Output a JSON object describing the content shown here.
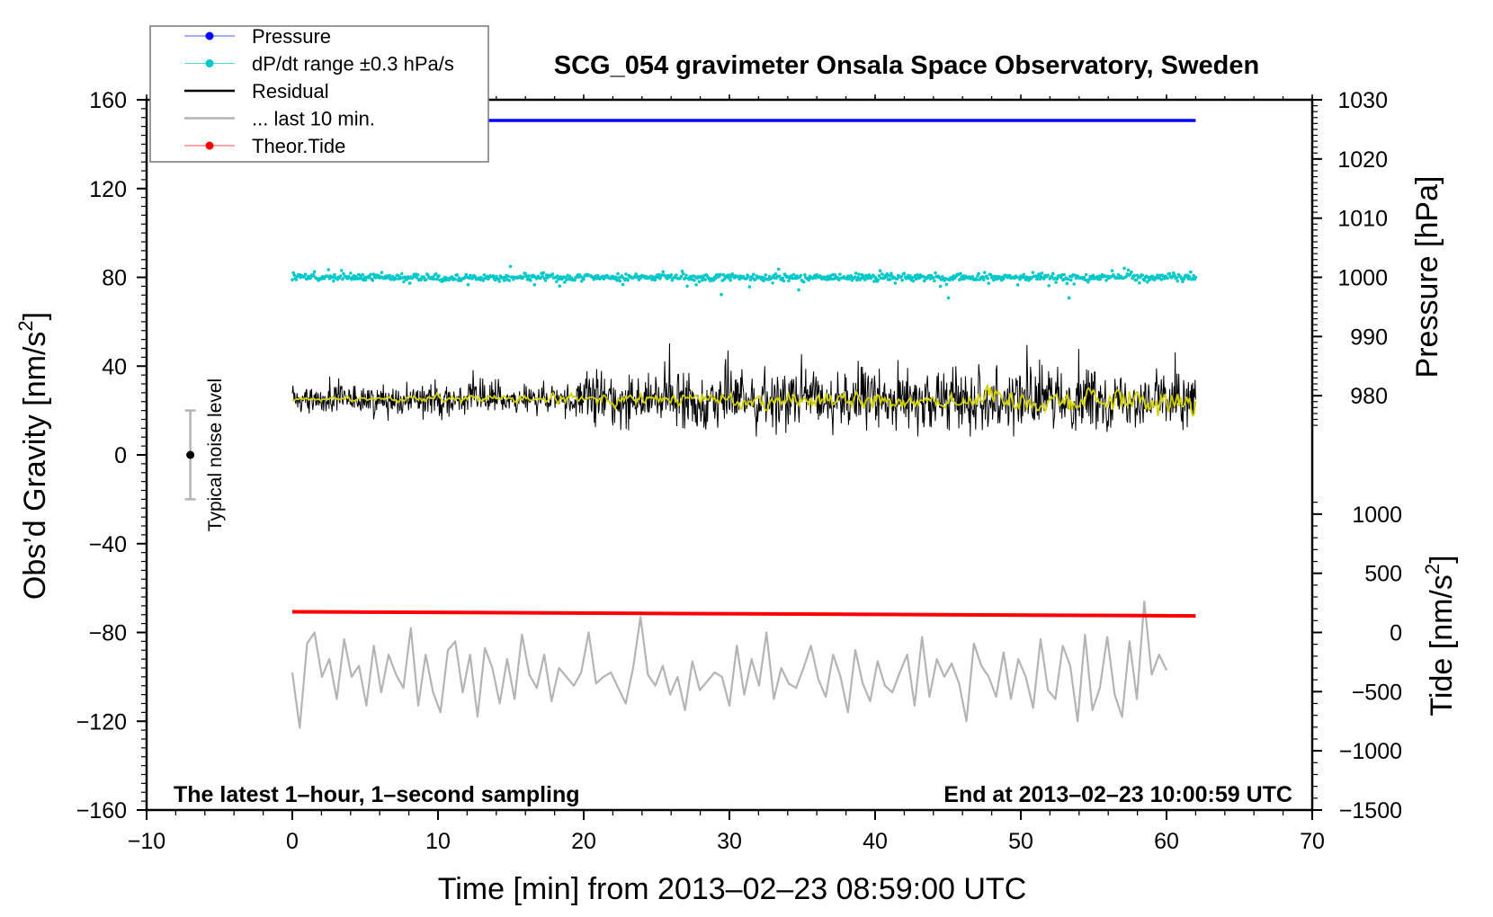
{
  "chart_data": {
    "type": "line",
    "title": "SCG_054 gravimeter Onsala Space Observatory, Sweden",
    "xlabel": "Time [min] from 2013–02–23 08:59:00 UTC",
    "ylabel": "Obs’d Gravity [nm/s²]",
    "ylabel_text": "Obs’d Gravity [nm/s",
    "ylabel_sup": "2",
    "ylabel_close": "]",
    "xlim": [
      -10,
      70
    ],
    "ylim": [
      -160,
      160
    ],
    "xticks": [
      "−10",
      "0",
      "10",
      "20",
      "30",
      "40",
      "50",
      "60",
      "70"
    ],
    "xtick_values": [
      -10,
      0,
      10,
      20,
      30,
      40,
      50,
      60,
      70
    ],
    "yticks": [
      "160",
      "120",
      "80",
      "40",
      "0",
      "−40",
      "−80",
      "−120",
      "−160"
    ],
    "ytick_values": [
      160,
      120,
      80,
      40,
      0,
      -40,
      -80,
      -120,
      -160
    ],
    "right_axis_pressure": {
      "label": "Pressure [hPa]",
      "ticks": [
        "1030",
        "1020",
        "1010",
        "1000",
        "990",
        "980"
      ],
      "tick_values": [
        1030,
        1020,
        1010,
        1000,
        990,
        980
      ],
      "gravity_at_1030": 160,
      "gravity_per_hPa": 2.6667
    },
    "right_axis_tide": {
      "label_text": "Tide [nm/s",
      "label_sup": "2",
      "label_close": "]",
      "ticks": [
        "1000",
        "500",
        "0",
        "−500",
        "−1000",
        "−1500"
      ],
      "tick_values": [
        1000,
        500,
        0,
        -500,
        -1000,
        -1500
      ],
      "gravity_at_0": -80,
      "gravity_per_unit": 0.05333
    },
    "legend": {
      "placement": "top-left",
      "entries": [
        {
          "label": "Pressure",
          "color": "#0000ff",
          "marker": "dot"
        },
        {
          "label": "dP/dt range ±0.3 hPa/s",
          "color": "#00c8c8",
          "marker": "dot"
        },
        {
          "label": "Residual",
          "color": "#000000",
          "marker": "line"
        },
        {
          "label": "... last 10 min.",
          "color": "#b4b4b4",
          "marker": "line"
        },
        {
          "label": "Theor.Tide",
          "color": "#ff0000",
          "marker": "dot"
        }
      ]
    },
    "annotations": {
      "left_note": "The latest 1–hour, 1–second sampling",
      "right_note": "End at 2013–02–23 10:00:59 UTC",
      "noise_label": "Typical noise level",
      "noise_center": 0,
      "noise_halfwidth": 20,
      "noise_x": -7
    },
    "series": [
      {
        "name": "Pressure",
        "color": "#0000ff",
        "unit": "hPa",
        "x_range": [
          0,
          62
        ],
        "value": 1026.5
      },
      {
        "name": "dP/dt",
        "color": "#00c8c8",
        "x_range": [
          0,
          62
        ],
        "center": 80,
        "typical_spread": 2.5,
        "max_spread": 12
      },
      {
        "name": "Residual",
        "color": "#000000",
        "x_range": [
          0,
          62
        ],
        "mean": 25,
        "min": -18,
        "max": 77
      },
      {
        "name": "Residual smoothed",
        "color": "#d2d200",
        "x_range": [
          0,
          62
        ],
        "mean": 25,
        "max_amplitude": 9
      },
      {
        "name": "Theor.Tide",
        "color": "#ff0000",
        "unit": "nm/s²",
        "x_range": [
          0,
          62
        ],
        "start": 175,
        "end": 140
      },
      {
        "name": "... last 10 min.",
        "color": "#b4b4b4",
        "x_range": [
          0,
          60
        ],
        "values": [
          -98,
          -123,
          -85,
          -80,
          -100,
          -92,
          -110,
          -83,
          -100,
          -95,
          -113,
          -86,
          -107,
          -90,
          -99,
          -105,
          -78,
          -113,
          -90,
          -107,
          -116,
          -88,
          -84,
          -107,
          -90,
          -118,
          -87,
          -96,
          -112,
          -92,
          -110,
          -81,
          -99,
          -105,
          -90,
          -111,
          -96,
          -100,
          -104,
          -98,
          -80,
          -103,
          -100,
          -98,
          -105,
          -112,
          -96,
          -73,
          -99,
          -104,
          -95,
          -108,
          -100,
          -115,
          -93,
          -106,
          -102,
          -98,
          -100,
          -113,
          -86,
          -108,
          -92,
          -104,
          -80,
          -110,
          -96,
          -103,
          -105,
          -96,
          -86,
          -101,
          -109,
          -90,
          -100,
          -116,
          -88,
          -103,
          -111,
          -93,
          -104,
          -107,
          -98,
          -90,
          -113,
          -82,
          -109,
          -92,
          -100,
          -94,
          -103,
          -120,
          -85,
          -95,
          -100,
          -109,
          -89,
          -110,
          -92,
          -100,
          -114,
          -83,
          -106,
          -110,
          -86,
          -95,
          -120,
          -81,
          -115,
          -105,
          -82,
          -108,
          -118,
          -84,
          -110,
          -66,
          -99,
          -90,
          -97
        ]
      }
    ]
  }
}
